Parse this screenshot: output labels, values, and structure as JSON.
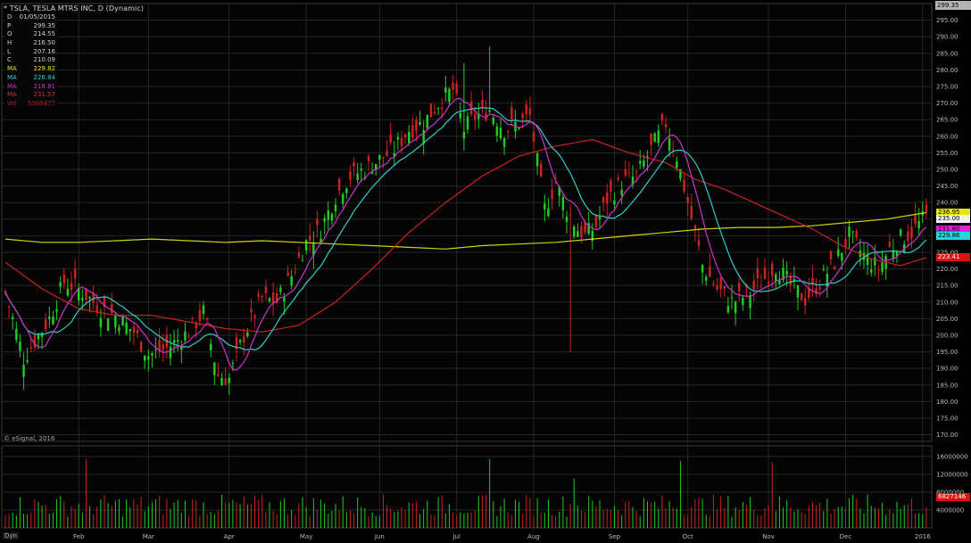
{
  "header": {
    "title": "* TSLA, TESLA MTRS INC, D (Dynamic)",
    "last_price": "299.35"
  },
  "datatable": [
    {
      "label": "D",
      "value": "01/05/2015",
      "color": "#d0d0d0"
    },
    {
      "label": "P",
      "value": "299.35",
      "color": "#d0d0d0"
    },
    {
      "label": "O",
      "value": "214.55",
      "color": "#d0d0d0"
    },
    {
      "label": "H",
      "value": "216.50",
      "color": "#d0d0d0"
    },
    {
      "label": "L",
      "value": "207.16",
      "color": "#d0d0d0"
    },
    {
      "label": "C",
      "value": "210.09",
      "color": "#d0d0d0"
    },
    {
      "label": "MA",
      "value": "229.82",
      "color": "#e6e600"
    },
    {
      "label": "MA",
      "value": "226.84",
      "color": "#33cccc"
    },
    {
      "label": "MA",
      "value": "218.81",
      "color": "#cc33cc"
    },
    {
      "label": "MA",
      "value": "231.57",
      "color": "#cc3333"
    },
    {
      "label": "Vol",
      "value": "5368477",
      "color": "#b02020"
    }
  ],
  "markers": [
    {
      "value": "236.95",
      "bg": "#e6e600",
      "fg": "#000000"
    },
    {
      "value": "235.00",
      "bg": "#f0f0f0",
      "fg": "#000000"
    },
    {
      "value": "231.80",
      "bg": "#e020e0",
      "fg": "#000000"
    },
    {
      "value": "229.86",
      "bg": "#20d8d8",
      "fg": "#000000"
    },
    {
      "value": "223.41",
      "bg": "#e01010",
      "fg": "#ffffff"
    }
  ],
  "volume_marker": "6827146",
  "copyright": "© eSignal, 2016",
  "dyn_label": "Dyn",
  "colors": {
    "up": "#22cc22",
    "down": "#cc2222",
    "ma_yellow": "#d4d400",
    "ma_cyan": "#33cccc",
    "ma_magenta": "#cc33cc",
    "ma_red": "#cc2222",
    "grid": "#262626",
    "axis_text": "#bbbbbb"
  },
  "chart_data": {
    "type": "candlestick",
    "title": "* TSLA, TESLA MTRS INC, D (Dynamic)",
    "price_axis": {
      "ylim": [
        168,
        300
      ],
      "ticks": [
        170,
        175,
        180,
        185,
        190,
        195,
        200,
        205,
        210,
        215,
        220,
        225,
        230,
        235,
        240,
        245,
        250,
        255,
        260,
        265,
        270,
        275,
        280,
        285,
        290,
        295
      ]
    },
    "volume_axis": {
      "ylim": [
        0,
        18000000
      ],
      "ticks": [
        4000000,
        8000000,
        12000000,
        16000000
      ],
      "tick_labels": [
        "4000000",
        "8000000",
        "12000000",
        "16000000"
      ]
    },
    "x_months": [
      "Feb",
      "Mar",
      "Apr",
      "May",
      "Jun",
      "Jul",
      "Aug",
      "Sep",
      "Oct",
      "Nov",
      "Dec",
      "2016"
    ],
    "month_start_index": [
      20,
      39,
      61,
      82,
      102,
      123,
      144,
      166,
      186,
      208,
      229,
      250
    ],
    "close_path": [
      [
        0,
        213
      ],
      [
        5,
        193
      ],
      [
        12,
        205
      ],
      [
        16,
        216
      ],
      [
        20,
        214
      ],
      [
        26,
        208
      ],
      [
        30,
        206
      ],
      [
        35,
        201
      ],
      [
        39,
        194
      ],
      [
        44,
        196
      ],
      [
        50,
        201
      ],
      [
        54,
        207
      ],
      [
        58,
        188
      ],
      [
        61,
        187
      ],
      [
        65,
        200
      ],
      [
        70,
        211
      ],
      [
        74,
        210
      ],
      [
        78,
        218
      ],
      [
        82,
        228
      ],
      [
        86,
        232
      ],
      [
        90,
        242
      ],
      [
        94,
        248
      ],
      [
        98,
        250
      ],
      [
        102,
        253
      ],
      [
        106,
        256
      ],
      [
        110,
        262
      ],
      [
        114,
        264
      ],
      [
        118,
        270
      ],
      [
        122,
        274
      ],
      [
        125,
        262
      ],
      [
        128,
        266
      ],
      [
        132,
        268
      ],
      [
        136,
        262
      ],
      [
        140,
        264
      ],
      [
        143,
        266
      ],
      [
        147,
        238
      ],
      [
        150,
        246
      ],
      [
        153,
        238
      ],
      [
        156,
        232
      ],
      [
        158,
        230
      ],
      [
        161,
        233
      ],
      [
        164,
        241
      ],
      [
        168,
        246
      ],
      [
        172,
        248
      ],
      [
        176,
        256
      ],
      [
        180,
        264
      ],
      [
        183,
        254
      ],
      [
        186,
        240
      ],
      [
        190,
        221
      ],
      [
        194,
        214
      ],
      [
        198,
        210
      ],
      [
        202,
        212
      ],
      [
        206,
        216
      ],
      [
        210,
        221
      ],
      [
        214,
        215
      ],
      [
        218,
        211
      ],
      [
        222,
        216
      ],
      [
        226,
        222
      ],
      [
        230,
        230
      ],
      [
        234,
        224
      ],
      [
        238,
        220
      ],
      [
        241,
        226
      ],
      [
        244,
        229
      ],
      [
        247,
        231
      ],
      [
        251,
        236
      ]
    ],
    "ma_200": [
      [
        0,
        229
      ],
      [
        10,
        228
      ],
      [
        20,
        228
      ],
      [
        30,
        228.5
      ],
      [
        40,
        229
      ],
      [
        50,
        228.5
      ],
      [
        60,
        228
      ],
      [
        70,
        228.5
      ],
      [
        80,
        228
      ],
      [
        90,
        227.5
      ],
      [
        100,
        227
      ],
      [
        110,
        226.5
      ],
      [
        120,
        226
      ],
      [
        130,
        227
      ],
      [
        140,
        227.5
      ],
      [
        150,
        228
      ],
      [
        160,
        229
      ],
      [
        170,
        230
      ],
      [
        180,
        231
      ],
      [
        190,
        232
      ],
      [
        200,
        232.5
      ],
      [
        210,
        232.5
      ],
      [
        220,
        233
      ],
      [
        230,
        234
      ],
      [
        240,
        235
      ],
      [
        251,
        236.95
      ]
    ],
    "ma_50": [
      [
        0,
        222
      ],
      [
        10,
        214
      ],
      [
        20,
        208
      ],
      [
        30,
        206
      ],
      [
        40,
        206
      ],
      [
        50,
        204
      ],
      [
        60,
        202
      ],
      [
        70,
        201
      ],
      [
        80,
        203
      ],
      [
        90,
        210
      ],
      [
        100,
        220
      ],
      [
        110,
        231
      ],
      [
        120,
        240
      ],
      [
        130,
        248
      ],
      [
        140,
        254
      ],
      [
        150,
        257
      ],
      [
        160,
        259
      ],
      [
        170,
        255
      ],
      [
        180,
        252
      ],
      [
        188,
        247
      ],
      [
        196,
        244
      ],
      [
        204,
        240
      ],
      [
        212,
        236
      ],
      [
        220,
        232
      ],
      [
        228,
        227
      ],
      [
        236,
        223
      ],
      [
        244,
        221
      ],
      [
        251,
        223.41
      ]
    ]
  }
}
